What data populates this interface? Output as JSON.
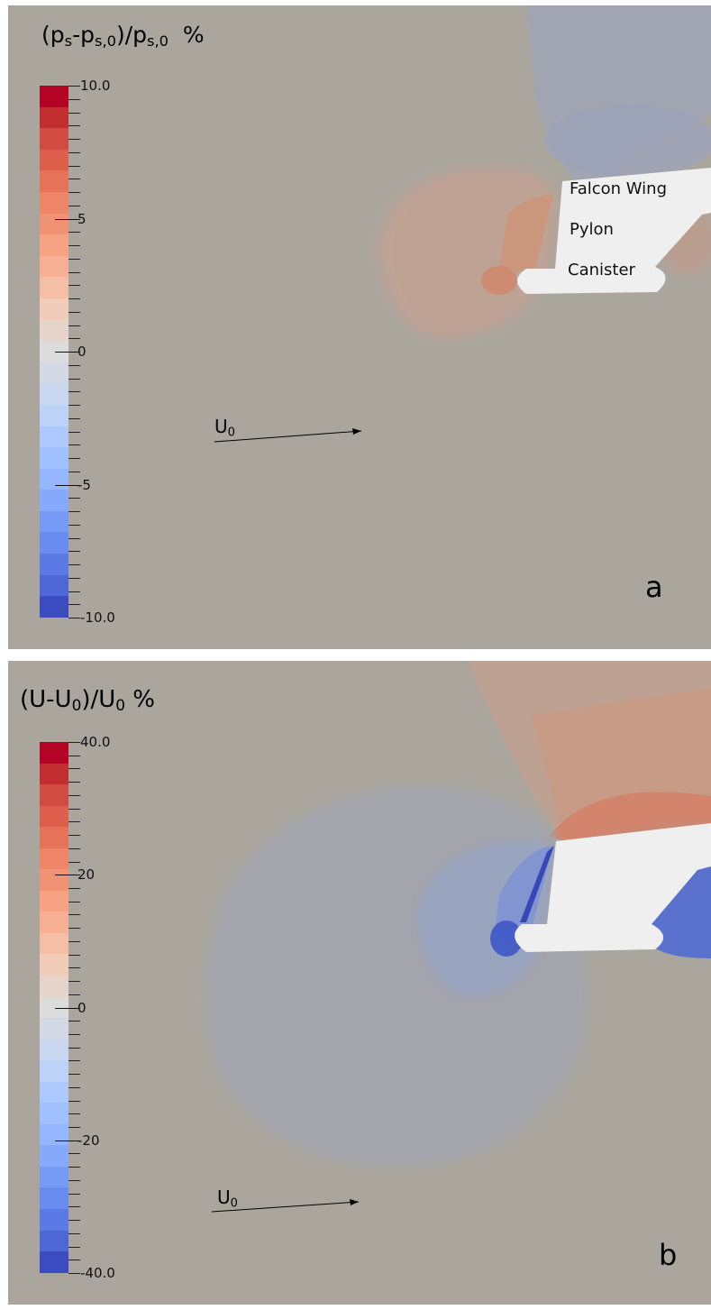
{
  "panels": [
    {
      "id": "a",
      "letter": "a",
      "colorbar_title_html": "(p<sub>s</sub>-p<sub>s,0</sub>)/p<sub>s,0</sub>&nbsp; %",
      "colorbar": {
        "min": -10.0,
        "max": 10.0,
        "labels": [
          "10.0",
          "5",
          "0",
          "-5",
          "-10.0"
        ],
        "label_values": [
          10,
          5,
          0,
          -5,
          -10
        ]
      },
      "freestream_label": "U",
      "freestream_sub": "0",
      "component_labels": [
        "Falcon Wing",
        "Pylon",
        "Canister"
      ]
    },
    {
      "id": "b",
      "letter": "b",
      "colorbar_title_html": "(U-U<sub>0</sub>)/U<sub>0</sub> %",
      "colorbar": {
        "min": -40.0,
        "max": 40.0,
        "labels": [
          "40.0",
          "20",
          "0",
          "-20",
          "-40.0"
        ],
        "label_values": [
          40,
          20,
          0,
          -20,
          -40
        ]
      },
      "freestream_label": "U",
      "freestream_sub": "0"
    }
  ],
  "colormap": {
    "name": "cool-warm (diverging)",
    "bands": [
      "#b40426",
      "#c32e31",
      "#d24b40",
      "#dd5f4b",
      "#e67259",
      "#ee8468",
      "#f29274",
      "#f6a283",
      "#f7b093",
      "#f5bfa6",
      "#f1cdb9",
      "#e6d4cb",
      "#dddcdc",
      "#d2d8e4",
      "#c9d7f0",
      "#bcd2f7",
      "#aec9fd",
      "#a1c0ff",
      "#94b6ff",
      "#86a9fc",
      "#779af7",
      "#6a8bef",
      "#5b7ae5",
      "#4e68d8",
      "#3b4cc0"
    ]
  }
}
